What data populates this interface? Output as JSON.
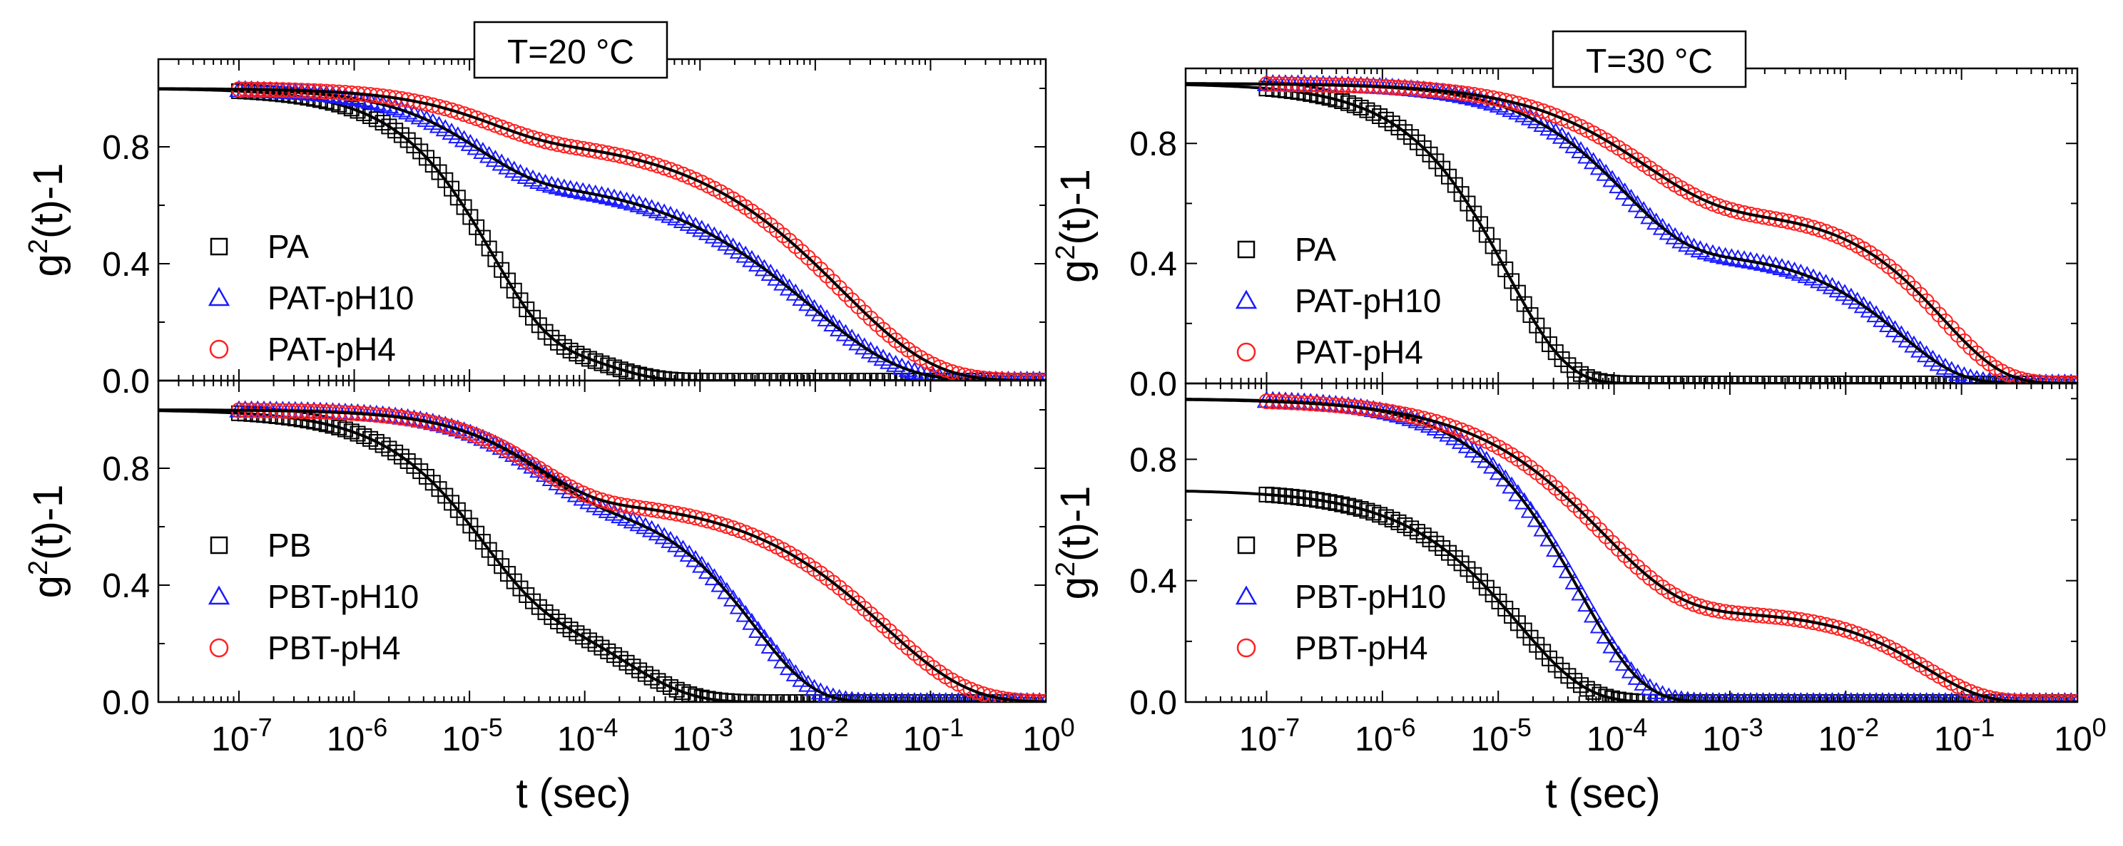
{
  "figure": {
    "description_sup": ""
  },
  "chart_data": [
    {
      "type": "scatter",
      "panel": "top-left",
      "title": "T=20 °C",
      "xlabel": "t (sec)",
      "ylabel": "g2(t)-1",
      "xscale": "log",
      "xlim": [
        2e-08,
        1
      ],
      "ylim": [
        0,
        1.1
      ],
      "show_title": true,
      "show_xlabel": false,
      "show_xticklabels": false,
      "yticks": [
        "0.0",
        "0.4",
        "0.8"
      ],
      "legend_position": "lower-left",
      "series": [
        {
          "name": "PA",
          "marker": "square",
          "color": "#000000",
          "baseline": 1.0,
          "components": [
            {
              "amp": 0.85,
              "tau": 1.5e-05,
              "beta": 0.9
            },
            {
              "amp": 0.15,
              "tau": 0.00015,
              "beta": 1.0
            }
          ]
        },
        {
          "name": "PAT-pH10",
          "marker": "triangle",
          "color": "#1a1aff",
          "baseline": 1.0,
          "components": [
            {
              "amp": 0.3,
              "tau": 1.2e-05,
              "beta": 0.9
            },
            {
              "amp": 0.7,
              "tau": 0.009,
              "beta": 0.55
            }
          ]
        },
        {
          "name": "PAT-pH4",
          "marker": "circle",
          "color": "#ff2020",
          "baseline": 1.0,
          "components": [
            {
              "amp": 0.16,
              "tau": 1.5e-05,
              "beta": 0.9
            },
            {
              "amp": 0.84,
              "tau": 0.017,
              "beta": 0.55
            }
          ]
        }
      ]
    },
    {
      "type": "scatter",
      "panel": "bottom-left",
      "title": "",
      "xlabel": "t (sec)",
      "ylabel": "g2(t)-1",
      "xscale": "log",
      "xlim": [
        2e-08,
        1
      ],
      "ylim": [
        0,
        1.1
      ],
      "show_title": false,
      "show_xlabel": true,
      "show_xticklabels": true,
      "xticks": [
        "10-7",
        "10-6",
        "10-5",
        "10-4",
        "10-3",
        "10-2",
        "10-1",
        "100"
      ],
      "yticks": [
        "0.0",
        "0.4",
        "0.8"
      ],
      "legend_position": "lower-left",
      "series": [
        {
          "name": "PB",
          "marker": "square",
          "color": "#000000",
          "baseline": 1.0,
          "components": [
            {
              "amp": 0.62,
              "tau": 1.2e-05,
              "beta": 0.85
            },
            {
              "amp": 0.38,
              "tau": 0.00022,
              "beta": 0.75
            }
          ]
        },
        {
          "name": "PBT-pH10",
          "marker": "triangle",
          "color": "#1a1aff",
          "baseline": 1.0,
          "components": [
            {
              "amp": 0.3,
              "tau": 4e-05,
              "beta": 0.9
            },
            {
              "amp": 0.7,
              "tau": 0.003,
              "beta": 0.85
            }
          ]
        },
        {
          "name": "PBT-pH4",
          "marker": "circle",
          "color": "#ff2020",
          "baseline": 1.0,
          "components": [
            {
              "amp": 0.3,
              "tau": 4e-05,
              "beta": 0.9
            },
            {
              "amp": 0.7,
              "tau": 0.04,
              "beta": 0.6
            }
          ]
        }
      ]
    },
    {
      "type": "scatter",
      "panel": "top-right",
      "title": "T=30 °C",
      "xlabel": "t (sec)",
      "ylabel": "g2(t)-1",
      "xscale": "log",
      "xlim": [
        2e-08,
        1
      ],
      "ylim": [
        0,
        1.05
      ],
      "show_title": true,
      "show_xlabel": false,
      "show_xticklabels": false,
      "yticks": [
        "0.0",
        "0.4",
        "0.8"
      ],
      "legend_position": "lower-left",
      "series": [
        {
          "name": "PA",
          "marker": "square",
          "color": "#000000",
          "baseline": 1.0,
          "components": [
            {
              "amp": 1.0,
              "tau": 1.2e-05,
              "beta": 0.85
            }
          ]
        },
        {
          "name": "PAT-pH10",
          "marker": "triangle",
          "color": "#1a1aff",
          "baseline": 1.0,
          "components": [
            {
              "amp": 0.56,
              "tau": 0.00012,
              "beta": 0.8
            },
            {
              "amp": 0.44,
              "tau": 0.03,
              "beta": 0.85
            }
          ]
        },
        {
          "name": "PAT-pH4",
          "marker": "circle",
          "color": "#ff2020",
          "baseline": 1.0,
          "components": [
            {
              "amp": 0.42,
              "tau": 0.00018,
              "beta": 0.7
            },
            {
              "amp": 0.58,
              "tau": 0.07,
              "beta": 0.85
            }
          ]
        }
      ]
    },
    {
      "type": "scatter",
      "panel": "bottom-right",
      "title": "",
      "xlabel": "t (sec)",
      "ylabel": "g2(t)-1",
      "xscale": "log",
      "xlim": [
        2e-08,
        1
      ],
      "ylim": [
        0,
        1.05
      ],
      "show_title": false,
      "show_xlabel": true,
      "show_xticklabels": true,
      "xticks": [
        "10-7",
        "10-6",
        "10-5",
        "10-4",
        "10-3",
        "10-2",
        "10-1",
        "100"
      ],
      "yticks": [
        "0.0",
        "0.4",
        "0.8"
      ],
      "legend_position": "lower-left",
      "series": [
        {
          "name": "PB",
          "marker": "square",
          "color": "#000000",
          "baseline": 0.7,
          "components": [
            {
              "amp": 1.0,
              "tau": 1.5e-05,
              "beta": 0.75
            }
          ]
        },
        {
          "name": "PBT-pH10",
          "marker": "triangle",
          "color": "#1a1aff",
          "baseline": 1.0,
          "components": [
            {
              "amp": 1.0,
              "tau": 5e-05,
              "beta": 0.8
            }
          ]
        },
        {
          "name": "PBT-pH4",
          "marker": "circle",
          "color": "#ff2020",
          "baseline": 1.0,
          "components": [
            {
              "amp": 0.7,
              "tau": 8e-05,
              "beta": 0.65
            },
            {
              "amp": 0.3,
              "tau": 0.05,
              "beta": 0.9
            }
          ]
        }
      ]
    }
  ]
}
